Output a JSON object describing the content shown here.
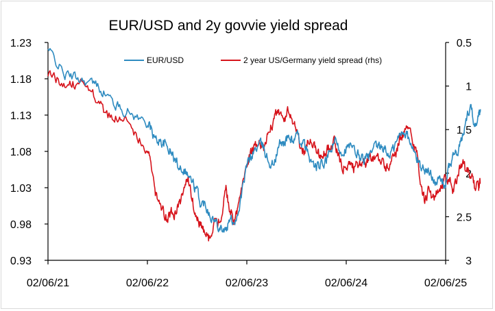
{
  "chart_data": {
    "type": "line",
    "title": "EUR/USD and 2y govvie yield spread",
    "xlabel": "",
    "ylabel_left": "",
    "ylabel_right": "",
    "x_tick_labels": [
      "02/06/21",
      "02/06/22",
      "02/06/23",
      "02/06/24",
      "02/06/25"
    ],
    "y_left": {
      "ylim": [
        0.93,
        1.23
      ],
      "ticks": [
        "1.23",
        "1.18",
        "1.13",
        "1.08",
        "1.03",
        "0.98",
        "0.93"
      ]
    },
    "y_right": {
      "ylim": [
        0.5,
        3
      ],
      "inverted": true,
      "ticks": [
        "0.5",
        "1",
        "1.5",
        "2",
        "2.5",
        "3"
      ]
    },
    "legend": {
      "position": "top",
      "entries": [
        "EUR/USD",
        "2 year US/Germany yield spread (rhs)"
      ]
    },
    "series": [
      {
        "name": "EUR/USD",
        "axis": "left",
        "color": "#2e8bc0",
        "points": [
          [
            0.0,
            1.22
          ],
          [
            0.08,
            1.205
          ],
          [
            0.17,
            1.185
          ],
          [
            0.25,
            1.183
          ],
          [
            0.33,
            1.18
          ],
          [
            0.42,
            1.175
          ],
          [
            0.5,
            1.17
          ],
          [
            0.58,
            1.16
          ],
          [
            0.67,
            1.145
          ],
          [
            0.75,
            1.138
          ],
          [
            0.83,
            1.133
          ],
          [
            0.92,
            1.125
          ],
          [
            1.0,
            1.12
          ],
          [
            1.04,
            1.11
          ],
          [
            1.08,
            1.095
          ],
          [
            1.13,
            1.095
          ],
          [
            1.17,
            1.09
          ],
          [
            1.21,
            1.085
          ],
          [
            1.25,
            1.075
          ],
          [
            1.29,
            1.065
          ],
          [
            1.33,
            1.06
          ],
          [
            1.38,
            1.055
          ],
          [
            1.42,
            1.045
          ],
          [
            1.46,
            1.035
          ],
          [
            1.5,
            1.025
          ],
          [
            1.54,
            1.005
          ],
          [
            1.58,
            1.01
          ],
          [
            1.62,
            0.998
          ],
          [
            1.67,
            0.985
          ],
          [
            1.71,
            0.98
          ],
          [
            1.75,
            0.975
          ],
          [
            1.79,
            0.97
          ],
          [
            1.83,
            0.985
          ],
          [
            1.88,
            0.985
          ],
          [
            1.92,
            1.0
          ],
          [
            1.96,
            1.03
          ],
          [
            2.0,
            1.06
          ],
          [
            2.04,
            1.072
          ],
          [
            2.08,
            1.082
          ],
          [
            2.13,
            1.09
          ],
          [
            2.17,
            1.085
          ],
          [
            2.21,
            1.07
          ],
          [
            2.25,
            1.06
          ],
          [
            2.29,
            1.07
          ],
          [
            2.33,
            1.09
          ],
          [
            2.38,
            1.093
          ],
          [
            2.42,
            1.1
          ],
          [
            2.46,
            1.095
          ],
          [
            2.5,
            1.1
          ],
          [
            2.54,
            1.095
          ],
          [
            2.58,
            1.088
          ],
          [
            2.62,
            1.075
          ],
          [
            2.67,
            1.06
          ],
          [
            2.71,
            1.058
          ],
          [
            2.75,
            1.06
          ],
          [
            2.79,
            1.065
          ],
          [
            2.83,
            1.075
          ],
          [
            2.88,
            1.095
          ],
          [
            2.92,
            1.085
          ],
          [
            2.96,
            1.08
          ],
          [
            3.0,
            1.085
          ],
          [
            3.04,
            1.085
          ],
          [
            3.08,
            1.08
          ],
          [
            3.13,
            1.075
          ],
          [
            3.17,
            1.07
          ],
          [
            3.21,
            1.07
          ],
          [
            3.25,
            1.075
          ],
          [
            3.29,
            1.085
          ],
          [
            3.33,
            1.085
          ],
          [
            3.38,
            1.085
          ],
          [
            3.42,
            1.075
          ],
          [
            3.46,
            1.08
          ],
          [
            3.5,
            1.09
          ],
          [
            3.54,
            1.103
          ],
          [
            3.58,
            1.11
          ],
          [
            3.62,
            1.1
          ],
          [
            3.67,
            1.082
          ],
          [
            3.71,
            1.07
          ],
          [
            3.75,
            1.06
          ],
          [
            3.79,
            1.055
          ],
          [
            3.83,
            1.05
          ],
          [
            3.88,
            1.045
          ],
          [
            3.92,
            1.04
          ],
          [
            3.96,
            1.04
          ],
          [
            4.0,
            1.035
          ],
          [
            4.04,
            1.06
          ],
          [
            4.08,
            1.075
          ],
          [
            4.13,
            1.08
          ],
          [
            4.17,
            1.1
          ],
          [
            4.21,
            1.125
          ],
          [
            4.25,
            1.145
          ],
          [
            4.29,
            1.118
          ],
          [
            4.33,
            1.13
          ],
          [
            4.35,
            1.138
          ]
        ]
      },
      {
        "name": "2 year US/Germany yield spread (rhs)",
        "axis": "right",
        "color": "#d6131b",
        "points": [
          [
            0.0,
            0.85
          ],
          [
            0.08,
            0.92
          ],
          [
            0.17,
            0.95
          ],
          [
            0.25,
            0.98
          ],
          [
            0.33,
            0.97
          ],
          [
            0.42,
            1.05
          ],
          [
            0.5,
            1.15
          ],
          [
            0.58,
            1.35
          ],
          [
            0.67,
            1.38
          ],
          [
            0.75,
            1.32
          ],
          [
            0.83,
            1.45
          ],
          [
            0.92,
            1.6
          ],
          [
            1.0,
            1.75
          ],
          [
            1.04,
            1.95
          ],
          [
            1.08,
            2.2
          ],
          [
            1.13,
            2.35
          ],
          [
            1.17,
            2.45
          ],
          [
            1.21,
            2.5
          ],
          [
            1.25,
            2.45
          ],
          [
            1.29,
            2.45
          ],
          [
            1.33,
            2.35
          ],
          [
            1.38,
            2.1
          ],
          [
            1.42,
            2.1
          ],
          [
            1.46,
            2.35
          ],
          [
            1.5,
            2.5
          ],
          [
            1.54,
            2.62
          ],
          [
            1.58,
            2.68
          ],
          [
            1.62,
            2.75
          ],
          [
            1.67,
            2.55
          ],
          [
            1.71,
            2.6
          ],
          [
            1.75,
            2.45
          ],
          [
            1.79,
            2.2
          ],
          [
            1.83,
            2.4
          ],
          [
            1.88,
            2.55
          ],
          [
            1.92,
            2.35
          ],
          [
            1.96,
            2.05
          ],
          [
            2.0,
            1.9
          ],
          [
            2.04,
            1.78
          ],
          [
            2.08,
            1.7
          ],
          [
            2.13,
            1.62
          ],
          [
            2.17,
            1.7
          ],
          [
            2.21,
            1.55
          ],
          [
            2.25,
            1.45
          ],
          [
            2.29,
            1.35
          ],
          [
            2.33,
            1.32
          ],
          [
            2.38,
            1.38
          ],
          [
            2.42,
            1.25
          ],
          [
            2.46,
            1.4
          ],
          [
            2.5,
            1.55
          ],
          [
            2.54,
            1.7
          ],
          [
            2.58,
            1.75
          ],
          [
            2.62,
            1.6
          ],
          [
            2.67,
            1.7
          ],
          [
            2.71,
            1.78
          ],
          [
            2.75,
            1.8
          ],
          [
            2.79,
            1.75
          ],
          [
            2.83,
            1.7
          ],
          [
            2.88,
            1.65
          ],
          [
            2.92,
            1.8
          ],
          [
            2.96,
            1.9
          ],
          [
            3.0,
            1.95
          ],
          [
            3.04,
            1.92
          ],
          [
            3.08,
            1.95
          ],
          [
            3.13,
            1.88
          ],
          [
            3.17,
            1.9
          ],
          [
            3.21,
            1.88
          ],
          [
            3.25,
            1.8
          ],
          [
            3.29,
            1.82
          ],
          [
            3.33,
            1.85
          ],
          [
            3.38,
            1.9
          ],
          [
            3.42,
            1.95
          ],
          [
            3.46,
            1.8
          ],
          [
            3.5,
            1.75
          ],
          [
            3.54,
            1.6
          ],
          [
            3.58,
            1.55
          ],
          [
            3.62,
            1.5
          ],
          [
            3.67,
            1.62
          ],
          [
            3.71,
            1.8
          ],
          [
            3.75,
            2.1
          ],
          [
            3.79,
            2.35
          ],
          [
            3.83,
            2.2
          ],
          [
            3.88,
            2.3
          ],
          [
            3.92,
            2.2
          ],
          [
            3.96,
            2.15
          ],
          [
            4.0,
            2.05
          ],
          [
            4.04,
            2.1
          ],
          [
            4.08,
            2.2
          ],
          [
            4.13,
            2.0
          ],
          [
            4.17,
            1.85
          ],
          [
            4.21,
            2.0
          ],
          [
            4.25,
            1.98
          ],
          [
            4.29,
            2.15
          ],
          [
            4.33,
            2.15
          ],
          [
            4.35,
            2.12
          ]
        ]
      }
    ]
  }
}
